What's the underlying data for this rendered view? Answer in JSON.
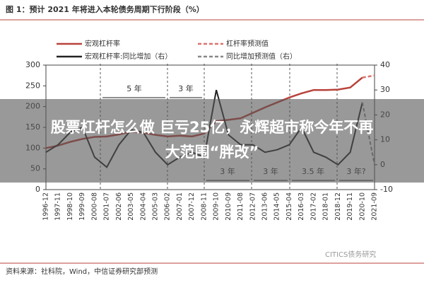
{
  "chart_data": {
    "type": "line",
    "title": "图 1：预计 2021 年将进入本轮债务周期下行阶段（%）",
    "source": "资料来源：社科院，Wind，中信证券研究部预测",
    "watermark": "CITICS债务研究",
    "headline": [
      "股票杠杆怎么做 巨亏25亿，永辉超市称今年不再",
      "大范围“胖改”"
    ],
    "annotations": [
      "5 年",
      "3 年",
      "3 年",
      "3 年",
      "3.5 年",
      "3 年?"
    ],
    "categories": [
      "1996-12",
      "1997-11",
      "1998-10",
      "1999-09",
      "2000-08",
      "2001-07",
      "2002-06",
      "2003-05",
      "2004-04",
      "2005-03",
      "2006-02",
      "2007-01",
      "2007-12",
      "2008-11",
      "2009-10",
      "2010-09",
      "2011-08",
      "2012-07",
      "2013-06",
      "2014-05",
      "2015-04",
      "2016-03",
      "2017-02",
      "2018-01",
      "2018-12",
      "2019-11",
      "2020-10",
      "2021-09"
    ],
    "series": [
      {
        "name": "宏观杠杆率",
        "color": "#b8433c",
        "dash": false,
        "values": [
          100,
          106,
          115,
          122,
          127,
          128,
          133,
          140,
          137,
          132,
          128,
          130,
          128,
          135,
          165,
          168,
          172,
          185,
          198,
          210,
          222,
          232,
          240,
          240,
          241,
          246,
          270,
          null
        ]
      },
      {
        "name": "杠杆率预测值",
        "color": "#d9736e",
        "dash": true,
        "values": [
          null,
          null,
          null,
          null,
          null,
          null,
          null,
          null,
          null,
          null,
          null,
          null,
          null,
          null,
          null,
          null,
          null,
          null,
          null,
          null,
          null,
          null,
          null,
          null,
          null,
          null,
          270,
          275
        ]
      },
      {
        "name": "宏观杠杆率:同比增加（右）",
        "color": "#222222",
        "dash": false,
        "axis": "y2",
        "values": [
          5,
          8,
          13,
          15,
          3,
          -1,
          8,
          14,
          13,
          5,
          0,
          3,
          5,
          3,
          30,
          12,
          8,
          8,
          5,
          6,
          8,
          15,
          5,
          3,
          0,
          5,
          25,
          null
        ]
      },
      {
        "name": "同比增加预测值（右）",
        "color": "#888888",
        "dash": true,
        "axis": "y2",
        "values": [
          null,
          null,
          null,
          null,
          null,
          null,
          null,
          null,
          null,
          null,
          null,
          null,
          null,
          null,
          null,
          null,
          null,
          null,
          null,
          null,
          null,
          null,
          null,
          null,
          null,
          null,
          25,
          0
        ]
      }
    ],
    "ylim": [
      0,
      300
    ],
    "yticks": [
      0,
      50,
      100,
      150,
      200,
      250,
      300
    ],
    "y2lim": [
      -10,
      40
    ],
    "y2ticks": [
      -10,
      0,
      10,
      20,
      30,
      40
    ]
  }
}
